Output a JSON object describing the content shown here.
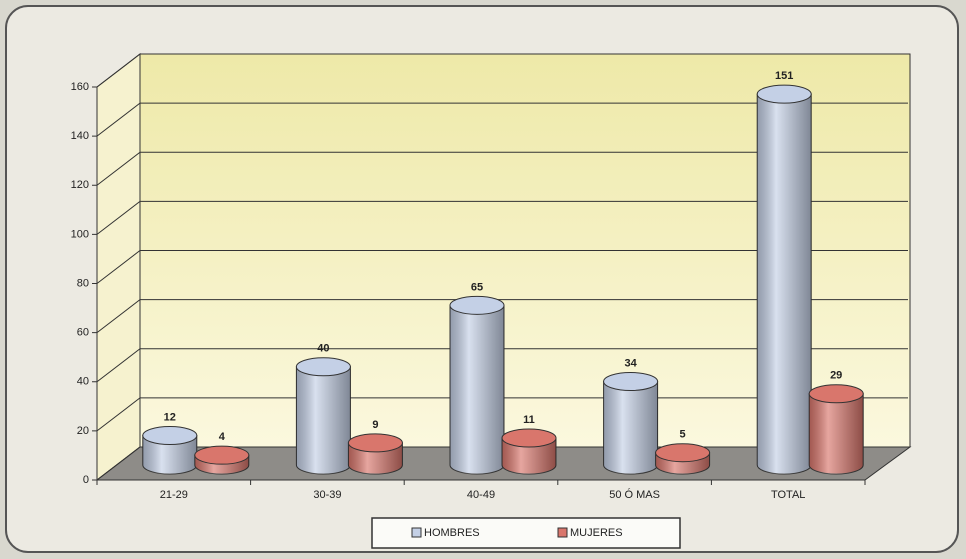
{
  "chart_data": {
    "type": "bar3d",
    "categories": [
      "21-29",
      "30-39",
      "40-49",
      "50 Ó MAS",
      "TOTAL"
    ],
    "series": [
      {
        "name": "HOMBRES",
        "color": "#c4d0e6",
        "values": [
          12,
          40,
          65,
          34,
          151
        ]
      },
      {
        "name": "MUJERES",
        "color": "#d9766c",
        "values": [
          4,
          9,
          11,
          5,
          29
        ]
      }
    ],
    "ylim": [
      0,
      160
    ],
    "yticks": [
      0,
      20,
      40,
      60,
      80,
      100,
      120,
      140,
      160
    ],
    "grid": true,
    "legend": "bottom"
  }
}
